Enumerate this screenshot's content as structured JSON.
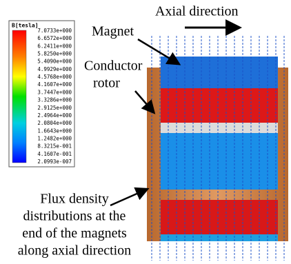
{
  "legend": {
    "title": "B[tesla]",
    "labels": [
      "7.0733e+000",
      "6.6572e+000",
      "6.2411e+000",
      "5.8250e+000",
      "5.4090e+000",
      "4.9929e+000",
      "4.5768e+000",
      "4.1607e+000",
      "3.7447e+000",
      "3.3286e+000",
      "2.9125e+000",
      "2.4964e+000",
      "2.0804e+000",
      "1.6643e+000",
      "1.2482e+000",
      "8.3215e-001",
      "4.1607e-001",
      "2.0993e-007"
    ]
  },
  "annotations": {
    "axial": "Axial direction",
    "magnet": "Magnet",
    "conductor": [
      "Conductor",
      "rotor"
    ],
    "flux": [
      "Flux density",
      "distributions at the",
      "end of the magnets",
      "along axial direction"
    ]
  }
}
